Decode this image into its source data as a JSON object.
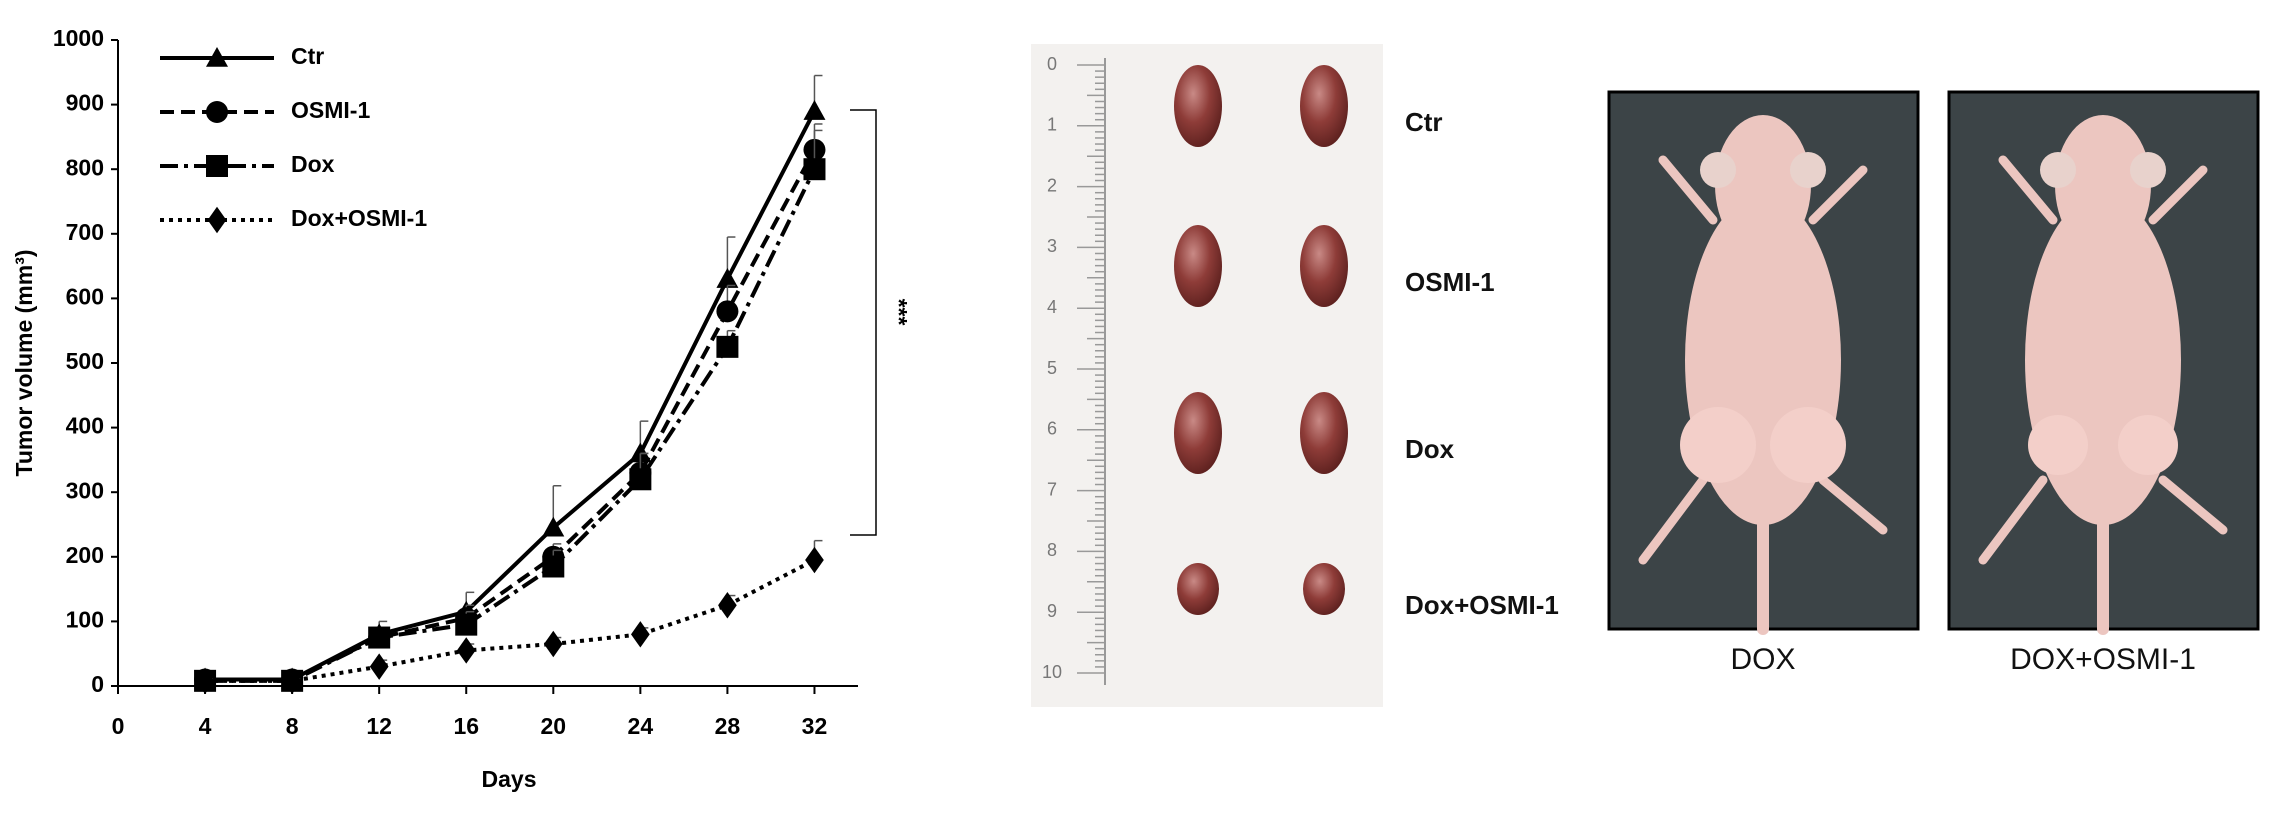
{
  "chart_data": {
    "type": "line",
    "x_label": "Days",
    "y_label": "Tumor volume (mm³)",
    "x": [
      4,
      8,
      12,
      16,
      20,
      24,
      28,
      32
    ],
    "xlim": [
      0,
      34
    ],
    "xticks": [
      0,
      4,
      8,
      12,
      16,
      20,
      24,
      28,
      32
    ],
    "ylim": [
      0,
      1000
    ],
    "yticks": [
      0,
      100,
      200,
      300,
      400,
      500,
      600,
      700,
      800,
      900,
      1000
    ],
    "series": [
      {
        "name": "Ctr",
        "color": "#000000",
        "marker": "triangle",
        "linestyle": "solid",
        "values": [
          10,
          10,
          80,
          115,
          245,
          360,
          630,
          890
        ],
        "errors": [
          5,
          5,
          20,
          30,
          65,
          50,
          65,
          55
        ]
      },
      {
        "name": "OSMI-1",
        "color": "#000000",
        "marker": "circle",
        "linestyle": "dashed",
        "values": [
          10,
          10,
          75,
          105,
          200,
          330,
          580,
          830
        ],
        "errors": [
          5,
          5,
          15,
          20,
          20,
          30,
          40,
          40
        ]
      },
      {
        "name": "Dox",
        "color": "#000000",
        "marker": "square",
        "linestyle": "dashdot",
        "values": [
          8,
          8,
          75,
          95,
          185,
          320,
          525,
          800
        ],
        "errors": [
          5,
          5,
          15,
          20,
          25,
          40,
          25,
          60
        ]
      },
      {
        "name": "Dox+OSMI-1",
        "color": "#000000",
        "marker": "diamond",
        "linestyle": "dotted",
        "values": [
          8,
          8,
          30,
          55,
          65,
          80,
          125,
          195
        ],
        "errors": [
          3,
          3,
          10,
          10,
          10,
          10,
          15,
          30
        ]
      }
    ],
    "significance": "***"
  },
  "tumor_photo": {
    "ruler_labels": [
      "0",
      "1",
      "2",
      "3",
      "4",
      "5",
      "6",
      "7",
      "8",
      "9",
      "10"
    ],
    "row_labels": [
      "Ctr",
      "OSMI-1",
      "Dox",
      "Dox+OSMI-1"
    ]
  },
  "mouse_photos": [
    {
      "caption": "DOX"
    },
    {
      "caption": "DOX+OSMI-1"
    }
  ]
}
